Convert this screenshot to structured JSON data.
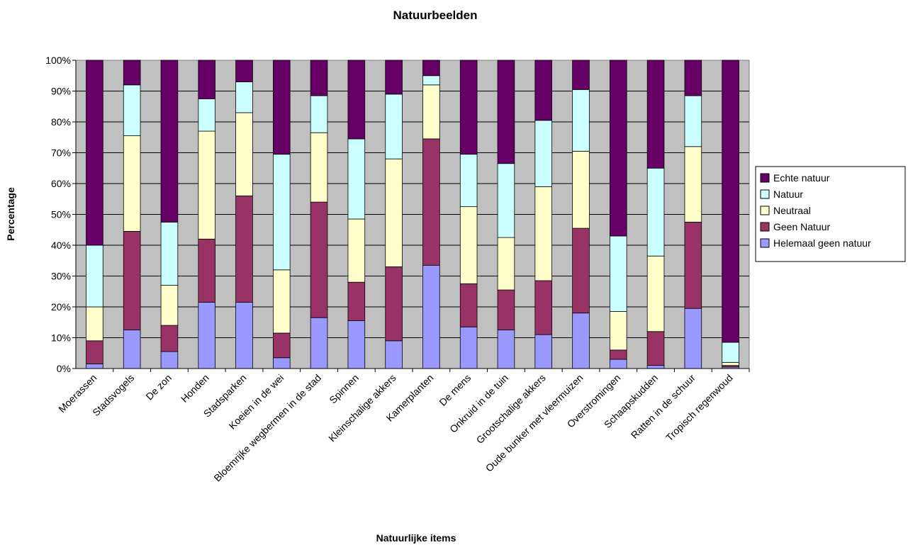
{
  "chart_data": {
    "type": "bar",
    "stacked": "percent",
    "title": "Natuurbeelden",
    "xlabel": "Natuurlijke items",
    "ylabel": "Percentage",
    "ylim": [
      0,
      100
    ],
    "y_ticks": [
      "0%",
      "10%",
      "20%",
      "30%",
      "40%",
      "50%",
      "60%",
      "70%",
      "80%",
      "90%",
      "100%"
    ],
    "grid": true,
    "legend_position": "right",
    "categories": [
      "Moerassen",
      "Stadsvogels",
      "De zon",
      "Honden",
      "Stadsparken",
      "Koeien in de wei",
      "Bloemrijke wegbermen in de stad",
      "Spinnen",
      "Kleinschalige akkers",
      "Kamerplanten",
      "De mens",
      "Onkruid in de tuin",
      "Grootschalige akkers",
      "Oude bunker met vleermuizen",
      "Overstromingen",
      "Schaapskudden",
      "Ratten in de schuur",
      "Tropisch regenwoud"
    ],
    "series": [
      {
        "name": "Helemaal geen natuur",
        "color": "#9999ff",
        "values": [
          1.5,
          12.5,
          5.5,
          21.5,
          21.5,
          3.5,
          16.5,
          15.5,
          9,
          33.5,
          13.5,
          12.5,
          11,
          18,
          3,
          1,
          19.5,
          0.5
        ]
      },
      {
        "name": "Geen Natuur",
        "color": "#993366",
        "values": [
          7.5,
          32,
          8.5,
          20.5,
          34.5,
          8,
          37.5,
          12.5,
          24,
          41,
          14,
          13,
          17.5,
          27.5,
          3,
          11,
          28,
          0.5
        ]
      },
      {
        "name": "Neutraal",
        "color": "#ffffcc",
        "values": [
          11,
          31,
          13,
          35,
          27,
          20.5,
          22.5,
          20.5,
          35,
          17.5,
          25,
          17,
          30.5,
          25,
          12.5,
          24.5,
          24.5,
          1
        ]
      },
      {
        "name": "Natuur",
        "color": "#ccffff",
        "values": [
          20,
          16.5,
          20.5,
          10.5,
          10,
          37.5,
          12,
          26,
          21,
          3,
          17,
          24,
          21.5,
          20,
          24.5,
          28.5,
          16.5,
          6.5
        ]
      },
      {
        "name": "Echte natuur",
        "color": "#660066",
        "values": [
          60,
          8,
          52.5,
          12.5,
          7,
          30.5,
          11.5,
          25.5,
          11,
          5,
          30.5,
          33.5,
          19.5,
          9.5,
          57,
          35,
          11.5,
          91.5
        ]
      }
    ],
    "legend_order": [
      "Echte natuur",
      "Natuur",
      "Neutraal",
      "Geen Natuur",
      "Helemaal geen natuur"
    ]
  }
}
